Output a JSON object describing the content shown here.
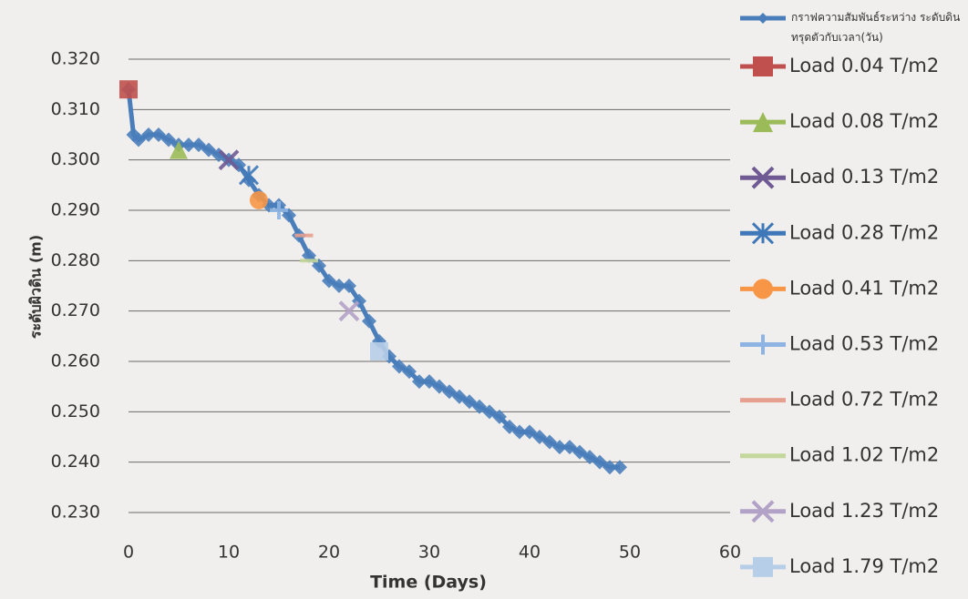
{
  "chart_data": {
    "type": "line",
    "x_label": "Time (Days)",
    "y_label": "ระดับผิวดิน (m)",
    "xlim": [
      0,
      60
    ],
    "xticks": [
      0,
      10,
      20,
      30,
      40,
      50,
      60
    ],
    "ylim": [
      0.23,
      0.32
    ],
    "yticks": [
      {
        "value": 0.23,
        "label": "0.230"
      },
      {
        "value": 0.24,
        "label": "0.240"
      },
      {
        "value": 0.25,
        "label": "0.250"
      },
      {
        "value": 0.26,
        "label": "0.260"
      },
      {
        "value": 0.27,
        "label": "0.270"
      },
      {
        "value": 0.28,
        "label": "0.280"
      },
      {
        "value": 0.29,
        "label": "0.290"
      },
      {
        "value": 0.3,
        "label": "0.300"
      },
      {
        "value": 0.31,
        "label": "0.310"
      },
      {
        "value": 0.32,
        "label": "0.320"
      }
    ],
    "grid": true,
    "legend": "right",
    "series": [
      {
        "name": "กราฟความสัมพันธ์ระหว่าง ระดับดินทรุดตัวกับเวลา(วัน)",
        "color": "#4a7ebb",
        "marker": "diamond",
        "x": [
          0,
          0.5,
          1,
          2,
          3,
          4,
          5,
          6,
          7,
          8,
          9,
          10,
          11,
          12,
          13,
          14,
          15,
          16,
          17,
          18,
          19,
          20,
          21,
          22,
          23,
          24,
          25,
          26,
          27,
          28,
          29,
          30,
          31,
          32,
          33,
          34,
          35,
          36,
          37,
          38,
          39,
          40,
          41,
          42,
          43,
          44,
          45,
          46,
          47,
          48,
          49
        ],
        "values": [
          0.314,
          0.305,
          0.304,
          0.305,
          0.305,
          0.304,
          0.303,
          0.303,
          0.303,
          0.302,
          0.301,
          0.3,
          0.299,
          0.296,
          0.293,
          0.291,
          0.291,
          0.289,
          0.285,
          0.281,
          0.279,
          0.276,
          0.275,
          0.275,
          0.272,
          0.268,
          0.264,
          0.261,
          0.259,
          0.258,
          0.256,
          0.256,
          0.255,
          0.254,
          0.253,
          0.252,
          0.251,
          0.25,
          0.249,
          0.247,
          0.246,
          0.246,
          0.245,
          0.244,
          0.243,
          0.243,
          0.242,
          0.241,
          0.24,
          0.239,
          0.239
        ]
      },
      {
        "name": "Load 0.04 T/m2",
        "color": "#c0504d",
        "marker": "square",
        "x": [
          0
        ],
        "values": [
          0.314
        ]
      },
      {
        "name": "Load 0.08 T/m2",
        "color": "#9bbb59",
        "marker": "triangle",
        "x": [
          5
        ],
        "values": [
          0.302
        ]
      },
      {
        "name": "Load 0.13 T/m2",
        "color": "#6f5a94",
        "marker": "cross",
        "x": [
          10
        ],
        "values": [
          0.3
        ]
      },
      {
        "name": "Load 0.28 T/m2",
        "color": "#3f78b8",
        "marker": "star",
        "x": [
          12
        ],
        "values": [
          0.297
        ]
      },
      {
        "name": "Load 0.41 T/m2",
        "color": "#f79646",
        "marker": "circle",
        "x": [
          13
        ],
        "values": [
          0.292
        ]
      },
      {
        "name": "Load 0.53 T/m2",
        "color": "#8db4e2",
        "marker": "plus",
        "x": [
          15
        ],
        "values": [
          0.29
        ]
      },
      {
        "name": "Load 0.72 T/m2",
        "color": "#e6a08f",
        "marker": "dash",
        "x": [
          17.5
        ],
        "values": [
          0.285
        ]
      },
      {
        "name": "Load 1.02 T/m2",
        "color": "#c3d69b",
        "marker": "dash",
        "x": [
          18
        ],
        "values": [
          0.28
        ]
      },
      {
        "name": "Load 1.23 T/m2",
        "color": "#b3a2c7",
        "marker": "cross",
        "x": [
          22
        ],
        "values": [
          0.27
        ]
      },
      {
        "name": "Load 1.79 T/m2",
        "color": "#b7cee8",
        "marker": "square",
        "x": [
          25
        ],
        "values": [
          0.262
        ]
      }
    ]
  }
}
